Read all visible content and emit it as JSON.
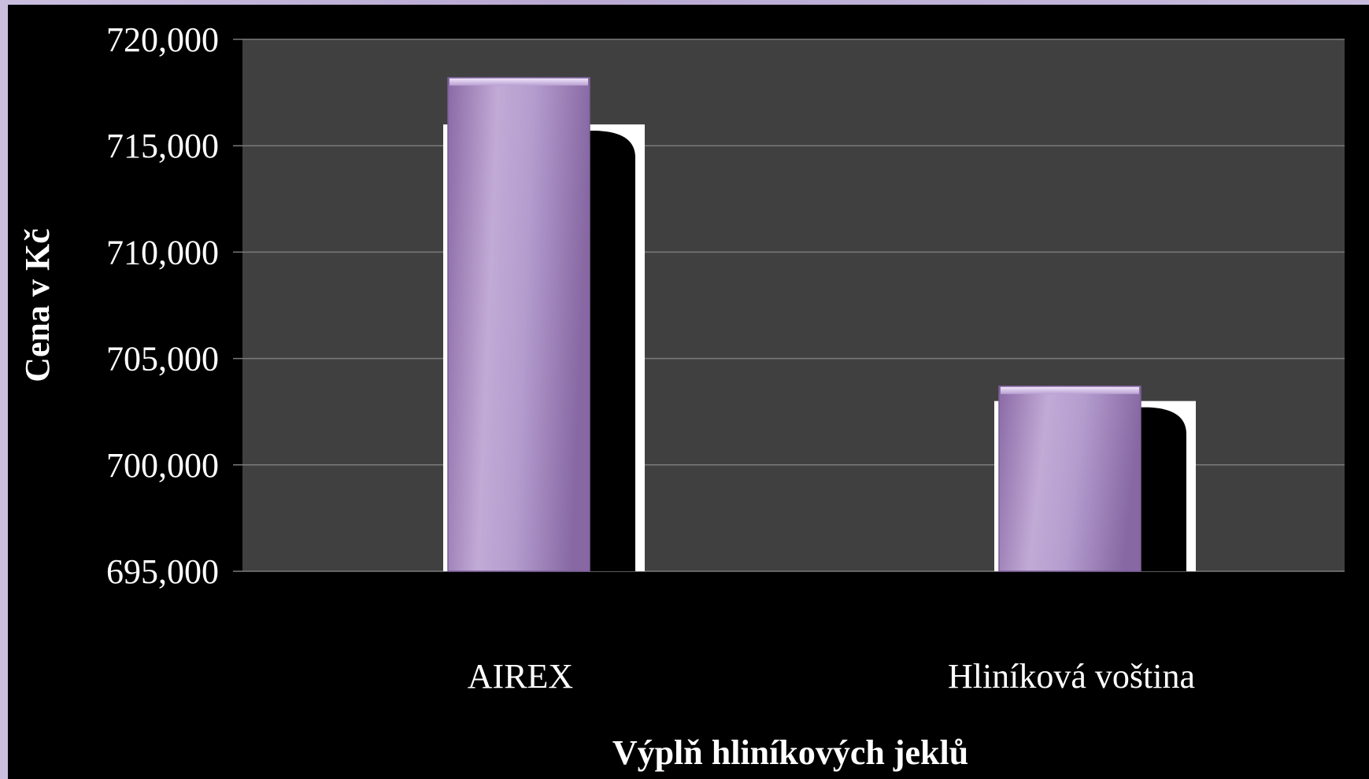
{
  "chart_data": {
    "type": "bar",
    "title": "",
    "xlabel": "Výplň hliníkových jeklů",
    "ylabel": "Cena v Kč",
    "categories": [
      "AIREX",
      "Hliníková voština"
    ],
    "series": [
      {
        "values": [
          718200,
          703700
        ]
      },
      {
        "values": [
          716000,
          703000
        ]
      }
    ],
    "ylim": [
      695000,
      720000
    ],
    "yticks": [
      695000,
      700000,
      705000,
      710000,
      715000,
      720000
    ],
    "ytick_labels": [
      "695,000",
      "700,000",
      "705,000",
      "710,000",
      "715,000",
      "720,000"
    ],
    "grid": true,
    "legend": "none",
    "colors": {
      "page_background": "#c2b4da",
      "chart_background": "#000000",
      "plot_background": "#404040",
      "gridline": "#7a7a7a",
      "bar_light": "#c4acd8",
      "bar_dark": "#8a6aa6",
      "outline_bar": "#ffffff",
      "text": "#ffffff"
    }
  }
}
